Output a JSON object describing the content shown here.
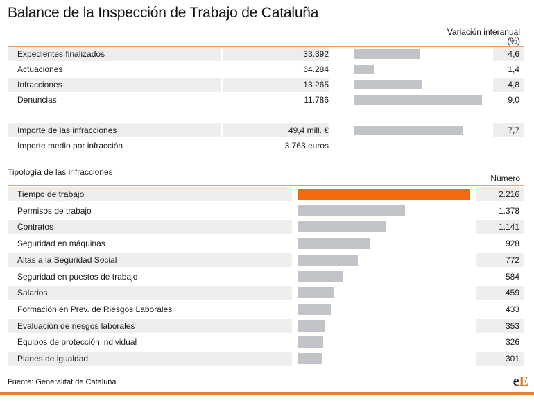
{
  "title": "Balance de la Inspección de Trabajo de Cataluña",
  "variation_header": "Variación interanual (%)",
  "summary": [
    {
      "label": "Expedientes finalizados",
      "value": "33.392",
      "variation": "4,6"
    },
    {
      "label": "Actuaciones",
      "value": "64.284",
      "variation": "1,4"
    },
    {
      "label": "Infracciones",
      "value": "13.265",
      "variation": "4,8"
    },
    {
      "label": "Denuncias",
      "value": "11.786",
      "variation": "9,0"
    }
  ],
  "amounts": [
    {
      "label": "Importe de las infracciones",
      "value": "49,4 mill. €",
      "variation": "7,7"
    },
    {
      "label": "Importe medio por infracción",
      "value": "3.763 euros",
      "variation": ""
    }
  ],
  "section_title": "Tipología de las infracciones",
  "number_header": "Número",
  "chart_data": {
    "type": "bar",
    "title": "Tipología de las infracciones",
    "categories": [
      "Tiempo de trabajo",
      "Permisos de trabajo",
      "Contratos",
      "Seguridad en máquinas",
      "Altas a la Seguridad Social",
      "Seguridad en puestos de trabajo",
      "Salarios",
      "Formación en Prev. de Riesgos Laborales",
      "Evaluación de riesgos laborales",
      "Equipos de protección individual",
      "Planes de igualdad"
    ],
    "values": [
      2216,
      1378,
      1141,
      928,
      772,
      584,
      459,
      433,
      353,
      326,
      301
    ],
    "labels": [
      "2.216",
      "1.378",
      "1.141",
      "928",
      "772",
      "584",
      "459",
      "433",
      "353",
      "326",
      "301"
    ],
    "highlight_color": "#f26a10",
    "bar_color": "#c0c4c8",
    "variation_values": [
      4.6,
      1.4,
      4.8,
      9.0,
      7.7
    ]
  },
  "source": "Fuente: Generalitat de Cataluña.",
  "logo": {
    "part1": "e",
    "part2": "E"
  },
  "colors": {
    "accent": "#f26a10",
    "rule": "#f39a5f",
    "shade": "#ededed"
  }
}
